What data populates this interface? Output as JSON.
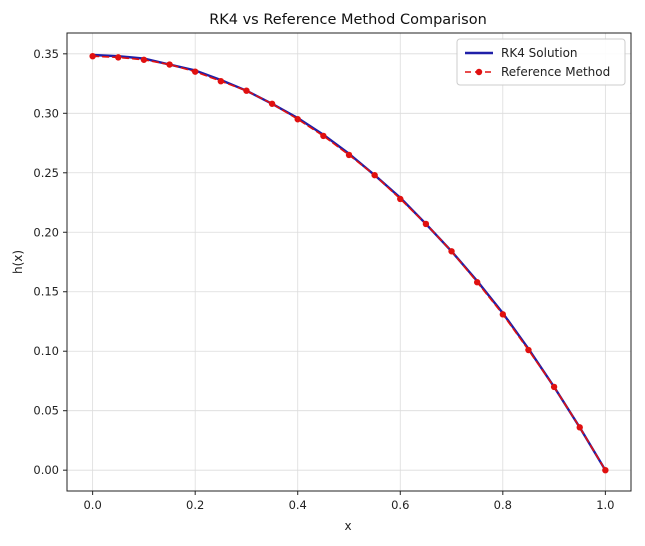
{
  "chart_data": {
    "type": "line",
    "title": "RK4 vs Reference Method Comparison",
    "xlabel": "x",
    "ylabel": "h(x)",
    "xlim": [
      -0.05,
      1.05
    ],
    "ylim": [
      -0.0175,
      0.3675
    ],
    "xticks": [
      0.0,
      0.2,
      0.4,
      0.6,
      0.8,
      1.0
    ],
    "xtick_labels": [
      "0.0",
      "0.2",
      "0.4",
      "0.6",
      "0.8",
      "1.0"
    ],
    "yticks": [
      0.0,
      0.05,
      0.1,
      0.15,
      0.2,
      0.25,
      0.3,
      0.35
    ],
    "ytick_labels": [
      "0.00",
      "0.05",
      "0.10",
      "0.15",
      "0.20",
      "0.25",
      "0.30",
      "0.35"
    ],
    "grid": true,
    "legend_position": "top-right",
    "series": [
      {
        "name": "RK4 Solution",
        "color": "#1f1fa8",
        "style": "solid",
        "marker": "none",
        "x": [
          0.0,
          0.05,
          0.1,
          0.15,
          0.2,
          0.25,
          0.3,
          0.35,
          0.4,
          0.45,
          0.5,
          0.55,
          0.6,
          0.65,
          0.7,
          0.75,
          0.8,
          0.85,
          0.9,
          0.95,
          1.0
        ],
        "y": [
          0.349,
          0.348,
          0.346,
          0.341,
          0.336,
          0.328,
          0.319,
          0.308,
          0.296,
          0.282,
          0.266,
          0.248,
          0.229,
          0.207,
          0.184,
          0.159,
          0.132,
          0.102,
          0.07,
          0.036,
          0.0
        ]
      },
      {
        "name": "Reference Method",
        "color": "#e01010",
        "style": "dashed",
        "marker": "circle",
        "x": [
          0.0,
          0.05,
          0.1,
          0.15,
          0.2,
          0.25,
          0.3,
          0.35,
          0.4,
          0.45,
          0.5,
          0.55,
          0.6,
          0.65,
          0.7,
          0.75,
          0.8,
          0.85,
          0.9,
          0.95,
          1.0
        ],
        "y": [
          0.348,
          0.347,
          0.345,
          0.341,
          0.335,
          0.327,
          0.319,
          0.308,
          0.295,
          0.281,
          0.265,
          0.248,
          0.228,
          0.207,
          0.184,
          0.158,
          0.131,
          0.101,
          0.07,
          0.036,
          0.0
        ]
      }
    ]
  }
}
